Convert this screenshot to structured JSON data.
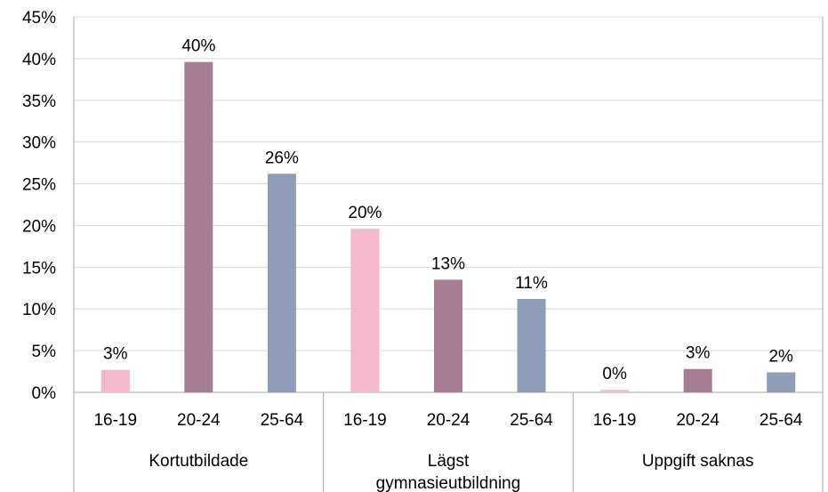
{
  "chart_data": {
    "type": "bar",
    "title": "",
    "xlabel": "",
    "ylabel": "",
    "ylim": [
      0,
      45
    ],
    "y_ticks": [
      "0%",
      "5%",
      "10%",
      "15%",
      "20%",
      "25%",
      "30%",
      "35%",
      "40%",
      "45%"
    ],
    "grid": true,
    "legend": "none",
    "groups": [
      {
        "label_lines": [
          "Kortutbildade"
        ],
        "bars": [
          {
            "category": "16-19",
            "value": 2.7,
            "label": "3%",
            "color": "#f4b9cc"
          },
          {
            "category": "20-24",
            "value": 39.6,
            "label": "40%",
            "color": "#a67d92"
          },
          {
            "category": "25-64",
            "value": 26.2,
            "label": "26%",
            "color": "#8e9db8"
          }
        ]
      },
      {
        "label_lines": [
          "Lägst",
          "gymnasieutbildning"
        ],
        "bars": [
          {
            "category": "16-19",
            "value": 19.6,
            "label": "20%",
            "color": "#f4b9cc"
          },
          {
            "category": "20-24",
            "value": 13.5,
            "label": "13%",
            "color": "#a67d92"
          },
          {
            "category": "25-64",
            "value": 11.2,
            "label": "11%",
            "color": "#8e9db8"
          }
        ]
      },
      {
        "label_lines": [
          "Uppgift saknas"
        ],
        "bars": [
          {
            "category": "16-19",
            "value": 0.3,
            "label": "0%",
            "color": "#f4b9cc"
          },
          {
            "category": "20-24",
            "value": 2.8,
            "label": "3%",
            "color": "#a67d92"
          },
          {
            "category": "25-64",
            "value": 2.4,
            "label": "2%",
            "color": "#8e9db8"
          }
        ]
      }
    ]
  }
}
